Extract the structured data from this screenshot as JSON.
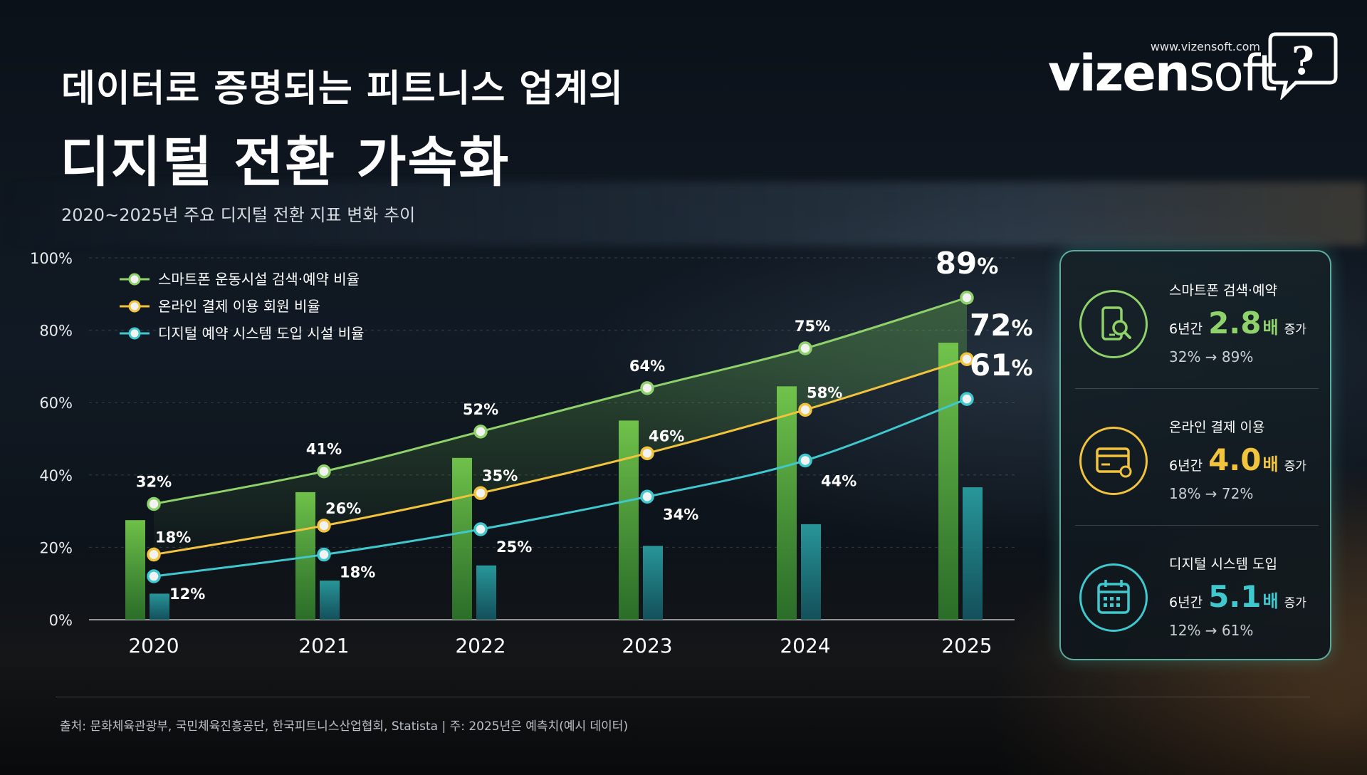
{
  "title_line1": "데이터로 증명되는 피트니스 업계의",
  "title_line2": "디지털 전환 가속화",
  "subtitle": "2020~2025년 주요 디지털 전환 지표 변화 추이",
  "logo": {
    "url": "www.vizensoft.com",
    "wordmark_bold": "vizen",
    "wordmark_light": "soft",
    "icon": "speech-bubble-question-icon"
  },
  "chart_data": {
    "type": "line",
    "x": [
      "2020",
      "2021",
      "2022",
      "2023",
      "2024",
      "2025"
    ],
    "ylim": [
      0,
      100
    ],
    "yticks": [
      "0%",
      "20%",
      "40%",
      "60%",
      "80%",
      "100%"
    ],
    "legend_position": "top-left",
    "grid": true,
    "series": [
      {
        "name": "스마트폰 운동시설 검색·예약 비율",
        "color": "#8fd16a",
        "values": [
          32,
          41,
          52,
          64,
          75,
          89
        ],
        "labels": [
          "32%",
          "41%",
          "52%",
          "64%",
          "75%",
          "89%"
        ],
        "bars": true
      },
      {
        "name": "온라인 결제 이용 회원 비율",
        "color": "#f2c33c",
        "values": [
          18,
          26,
          35,
          46,
          58,
          72
        ],
        "labels": [
          "18%",
          "26%",
          "35%",
          "46%",
          "58%",
          "72%"
        ],
        "bars": false
      },
      {
        "name": "디지털 예약 시스템 도입 시설 비율",
        "color": "#3fc9cf",
        "values": [
          12,
          18,
          25,
          34,
          44,
          61
        ],
        "labels": [
          "12%",
          "18%",
          "25%",
          "34%",
          "44%",
          "61%"
        ],
        "bars": true
      }
    ]
  },
  "kpis": [
    {
      "title": "스마트폰 검색·예약",
      "prefix": "6년간",
      "value": "2.8",
      "unit": "배",
      "suffix": "증가",
      "range": "32% → 89%",
      "color": "#8fd16a",
      "icon": "smartphone-search-icon"
    },
    {
      "title": "온라인 결제 이용",
      "prefix": "6년간",
      "value": "4.0",
      "unit": "배",
      "suffix": "증가",
      "range": "18% → 72%",
      "color": "#f2c33c",
      "icon": "credit-card-icon"
    },
    {
      "title": "디지털 시스템 도입",
      "prefix": "6년간",
      "value": "5.1",
      "unit": "배",
      "suffix": "증가",
      "range": "12% → 61%",
      "color": "#3fc9cf",
      "icon": "calendar-icon"
    }
  ],
  "footer": "출처: 문화체육관광부, 국민체육진흥공단, 한국피트니스산업협회, Statista   |   주: 2025년은 예측치(예시 데이터)"
}
